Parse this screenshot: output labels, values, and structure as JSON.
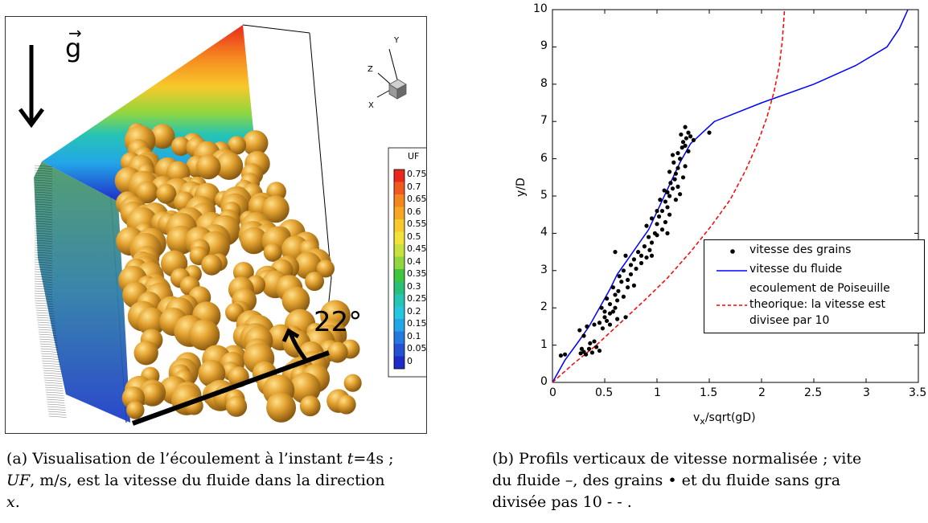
{
  "figure_a": {
    "gravity_symbol": "g",
    "gravity_arrow_over": "→",
    "angle_label": "22°",
    "axes_triad": {
      "x": "X",
      "y": "Y",
      "z": "Z"
    },
    "colorbar": {
      "title": "UF",
      "ticks": [
        "0.75",
        "0.7",
        "0.65",
        "0.6",
        "0.55",
        "0.5",
        "0.45",
        "0.4",
        "0.35",
        "0.3",
        "0.25",
        "0.2",
        "0.15",
        "0.1",
        "0.05",
        "0"
      ],
      "colors": [
        "#e8291c",
        "#f05a1e",
        "#f5861f",
        "#f5a623",
        "#f7c92a",
        "#f2e33a",
        "#c9e03d",
        "#8fd63f",
        "#3fc63e",
        "#2bc07a",
        "#26c4b3",
        "#24c6e0",
        "#23a6e8",
        "#2479de",
        "#2450d2",
        "#1f2bc9"
      ]
    },
    "caption_tag": "(a)",
    "caption_lines": [
      "Visualisation de l’écoulement à l’instant ",
      "t",
      "=4s ;",
      "UF",
      ", m/s, est la vitesse du fluide dans la direction",
      "x",
      "."
    ]
  },
  "figure_b": {
    "caption_tag": "(b)",
    "caption_line1": "Profils verticaux de vitesse normalisée ; vite",
    "caption_line2": "du fluide –, des grains • et du fluide sans gra",
    "caption_line3": "divisée pas 10 - - ."
  },
  "chart_data": {
    "type": "scatter",
    "xlabel": "v_x/sqrt(gD)",
    "xlabel_base": "v",
    "xlabel_sub": "x",
    "xlabel_rest": "/sqrt(gD)",
    "ylabel": "y/D",
    "xlim": [
      0,
      3.5
    ],
    "ylim": [
      0,
      10
    ],
    "xticks": [
      "0",
      "0.5",
      "1",
      "1.5",
      "2",
      "2.5",
      "3",
      "3.5"
    ],
    "yticks": [
      "0",
      "1",
      "2",
      "3",
      "4",
      "5",
      "6",
      "7",
      "8",
      "9",
      "10"
    ],
    "grid": false,
    "legend_position": "lower-right",
    "legend": {
      "grains": "vitesse des grains",
      "fluid": "vitesse du fluide",
      "poiseuille_l1": "ecoulement de Poiseuille",
      "poiseuille_l2": "theorique: la vitesse est",
      "poiseuille_l3": "divisee par 10"
    },
    "series": [
      {
        "name": "vitesse du fluide",
        "style": "solid",
        "color": "#0000ff",
        "x": [
          0,
          0.12,
          0.25,
          0.35,
          0.45,
          0.55,
          0.62,
          0.72,
          0.82,
          0.92,
          1.02,
          1.12,
          1.22,
          1.32,
          1.55,
          2.0,
          2.5,
          2.9,
          3.2,
          3.32,
          3.4
        ],
        "y": [
          0,
          0.6,
          1.1,
          1.5,
          2.0,
          2.5,
          2.9,
          3.3,
          3.7,
          4.1,
          4.7,
          5.3,
          5.9,
          6.4,
          7.0,
          7.5,
          8.0,
          8.5,
          9.0,
          9.5,
          10.0
        ]
      },
      {
        "name": "ecoulement de Poiseuille theorique: la vitesse est divisee par 10",
        "style": "dashed",
        "color": "#ff0000",
        "x": [
          0,
          0.2,
          0.42,
          0.65,
          0.88,
          1.1,
          1.32,
          1.52,
          1.7,
          1.85,
          1.96,
          2.05,
          2.12,
          2.17,
          2.2,
          2.22
        ],
        "y": [
          0,
          0.5,
          1.0,
          1.6,
          2.2,
          2.8,
          3.5,
          4.2,
          4.9,
          5.7,
          6.4,
          7.1,
          7.8,
          8.5,
          9.2,
          10.0
        ]
      },
      {
        "name": "vitesse des grains",
        "style": "markers",
        "color": "#000000",
        "points": [
          [
            0.08,
            0.72
          ],
          [
            0.12,
            0.75
          ],
          [
            0.27,
            0.78
          ],
          [
            0.3,
            0.82
          ],
          [
            0.32,
            0.75
          ],
          [
            0.35,
            0.9
          ],
          [
            0.38,
            0.8
          ],
          [
            0.42,
            0.95
          ],
          [
            0.45,
            0.85
          ],
          [
            0.28,
            0.9
          ],
          [
            0.36,
            1.05
          ],
          [
            0.4,
            1.1
          ],
          [
            0.3,
            1.25
          ],
          [
            0.26,
            1.4
          ],
          [
            0.33,
            1.5
          ],
          [
            0.4,
            1.55
          ],
          [
            0.45,
            1.6
          ],
          [
            0.5,
            1.75
          ],
          [
            0.52,
            1.65
          ],
          [
            0.55,
            1.85
          ],
          [
            0.58,
            1.9
          ],
          [
            0.6,
            2.0
          ],
          [
            0.55,
            2.1
          ],
          [
            0.62,
            2.2
          ],
          [
            0.6,
            2.35
          ],
          [
            0.58,
            2.55
          ],
          [
            0.63,
            2.45
          ],
          [
            0.66,
            2.7
          ],
          [
            0.64,
            2.85
          ],
          [
            0.7,
            1.75
          ],
          [
            0.47,
            2.0
          ],
          [
            0.52,
            2.25
          ],
          [
            0.68,
            2.3
          ],
          [
            0.72,
            2.55
          ],
          [
            0.75,
            2.9
          ],
          [
            0.8,
            3.05
          ],
          [
            0.85,
            3.2
          ],
          [
            0.9,
            3.35
          ],
          [
            0.95,
            3.4
          ],
          [
            0.82,
            3.5
          ],
          [
            0.88,
            3.65
          ],
          [
            0.95,
            3.75
          ],
          [
            0.92,
            3.9
          ],
          [
            1.0,
            3.95
          ],
          [
            1.05,
            4.1
          ],
          [
            1.0,
            4.25
          ],
          [
            1.08,
            4.3
          ],
          [
            1.02,
            4.45
          ],
          [
            1.05,
            4.6
          ],
          [
            1.1,
            4.7
          ],
          [
            1.08,
            4.85
          ],
          [
            1.12,
            5.0
          ],
          [
            1.1,
            5.1
          ],
          [
            1.15,
            5.2
          ],
          [
            1.13,
            5.35
          ],
          [
            1.17,
            5.45
          ],
          [
            1.18,
            5.6
          ],
          [
            1.2,
            5.75
          ],
          [
            1.16,
            5.9
          ],
          [
            1.22,
            6.0
          ],
          [
            1.2,
            6.15
          ],
          [
            1.24,
            6.3
          ],
          [
            1.25,
            6.45
          ],
          [
            1.28,
            6.55
          ],
          [
            1.3,
            6.7
          ],
          [
            1.27,
            6.85
          ],
          [
            1.32,
            6.6
          ],
          [
            1.35,
            6.5
          ],
          [
            1.5,
            6.7
          ],
          [
            1.1,
            4.0
          ],
          [
            1.12,
            4.5
          ],
          [
            1.18,
            4.9
          ],
          [
            1.2,
            5.25
          ],
          [
            1.25,
            5.5
          ],
          [
            1.22,
            5.05
          ],
          [
            1.27,
            5.8
          ],
          [
            0.98,
            4.0
          ],
          [
            0.93,
            3.55
          ],
          [
            0.85,
            3.4
          ],
          [
            0.78,
            3.3
          ],
          [
            0.7,
            3.4
          ],
          [
            0.6,
            3.5
          ],
          [
            0.75,
            3.15
          ],
          [
            0.68,
            3.0
          ],
          [
            0.72,
            2.75
          ],
          [
            0.78,
            2.6
          ],
          [
            0.5,
            1.9
          ],
          [
            0.55,
            1.55
          ],
          [
            0.48,
            1.45
          ],
          [
            0.62,
            1.7
          ],
          [
            0.9,
            4.2
          ],
          [
            0.95,
            4.4
          ],
          [
            1.0,
            4.6
          ],
          [
            1.03,
            4.9
          ],
          [
            1.07,
            5.15
          ],
          [
            1.12,
            5.65
          ],
          [
            1.15,
            6.1
          ],
          [
            1.3,
            6.2
          ],
          [
            1.23,
            6.65
          ],
          [
            1.27,
            6.35
          ]
        ]
      }
    ]
  }
}
